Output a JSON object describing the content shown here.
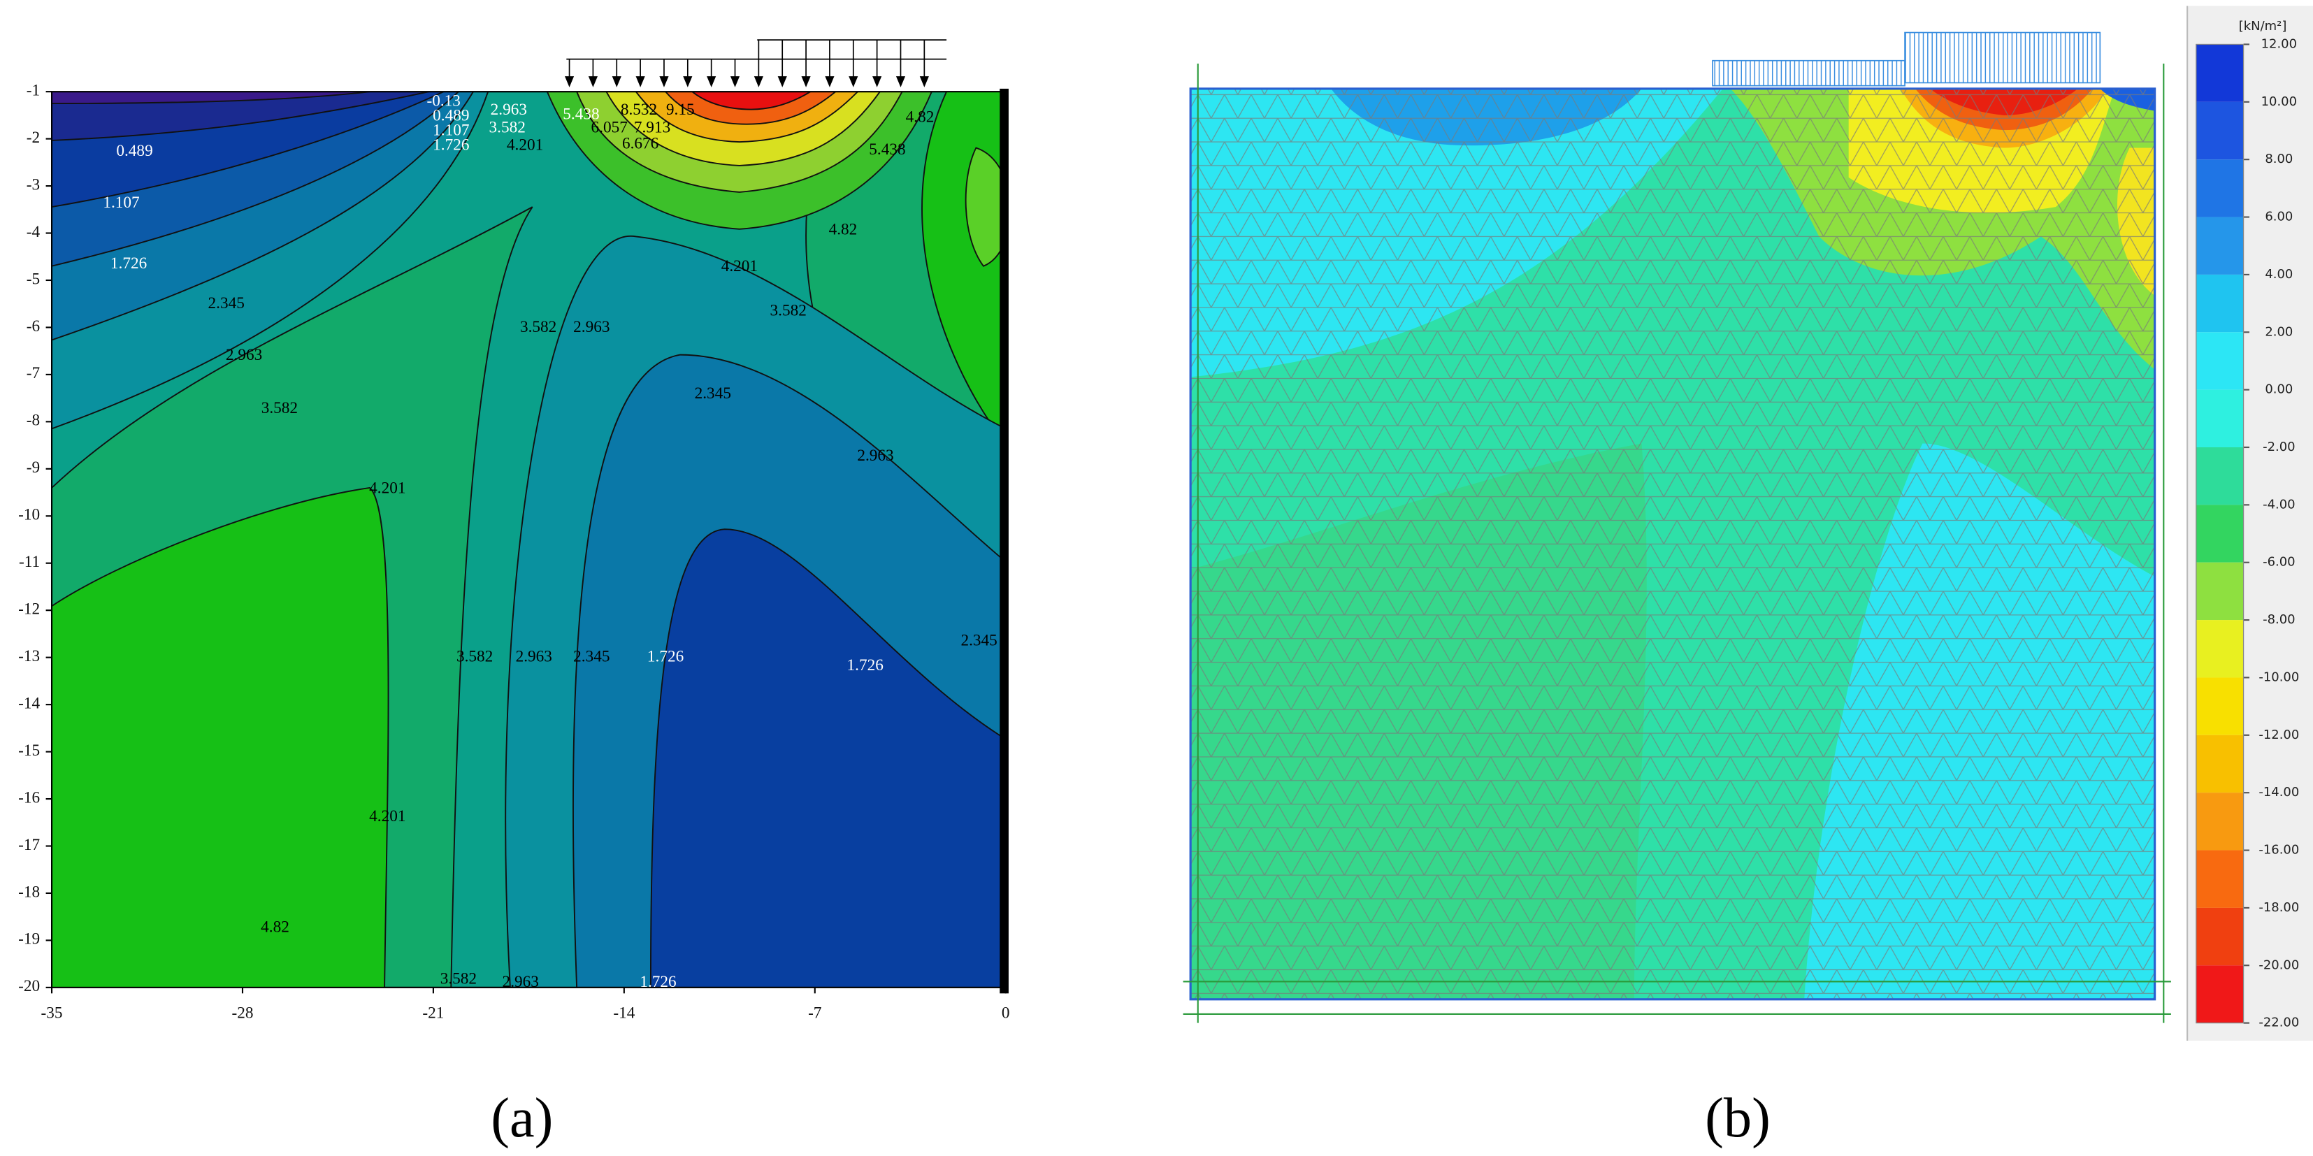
{
  "chart_data": [
    {
      "type": "contour",
      "panel_label": "(a)",
      "xlim": [
        -35,
        0
      ],
      "xticks": [
        -35,
        -28,
        -21,
        -14,
        -7,
        0
      ],
      "ylim": [
        -20,
        -1
      ],
      "yticks": [
        -1,
        -2,
        -3,
        -4,
        -5,
        -6,
        -7,
        -8,
        -9,
        -10,
        -11,
        -12,
        -13,
        -14,
        -15,
        -16,
        -17,
        -18,
        -19,
        -20
      ],
      "contour_labels": [
        "-0.13",
        "0.489",
        "1.107",
        "1.726",
        "2.963",
        "3.582",
        "4.201",
        "5.438",
        "6.057",
        "7.913",
        "8.532",
        "9.15",
        "6.676",
        "4.82",
        "5.438",
        "4.82",
        "4.201",
        "3.582",
        "0.489",
        "1.107",
        "1.726",
        "2.345",
        "2.963",
        "3.582",
        "4.201",
        "3.582",
        "2.963",
        "2.345",
        "2.963",
        "3.582",
        "2.963",
        "2.345",
        "1.726",
        "1.726",
        "2.345",
        "4.201",
        "4.82",
        "3.582",
        "2.963",
        "1.726"
      ]
    },
    {
      "type": "colormesh",
      "panel_label": "(b)",
      "colorbar_label": "[kN/m²]",
      "colorbar_lim": [
        -22,
        12
      ],
      "colorbar_ticks": [
        {
          "value": 12,
          "label": "12.00"
        },
        {
          "value": 10,
          "label": "10.00"
        },
        {
          "value": 8,
          "label": "8.00"
        },
        {
          "value": 6,
          "label": "6.00"
        },
        {
          "value": 4,
          "label": "4.00"
        },
        {
          "value": 2,
          "label": "2.00"
        },
        {
          "value": 0,
          "label": "0.00"
        },
        {
          "value": -2,
          "label": "-2.00"
        },
        {
          "value": -4,
          "label": "-4.00"
        },
        {
          "value": -6,
          "label": "-6.00"
        },
        {
          "value": -8,
          "label": "-8.00"
        },
        {
          "value": -10,
          "label": "-10.00"
        },
        {
          "value": -12,
          "label": "-12.00"
        },
        {
          "value": -14,
          "label": "-14.00"
        },
        {
          "value": -16,
          "label": "-16.00"
        },
        {
          "value": -18,
          "label": "-18.00"
        },
        {
          "value": -20,
          "label": "-20.00"
        },
        {
          "value": -22,
          "label": "-22.00"
        }
      ],
      "colorbar_colors": [
        "#1238d8",
        "#1d55e0",
        "#1f75e5",
        "#2596ea",
        "#1fc4f0",
        "#2ce6f5",
        "#2ef0e0",
        "#2edc9a",
        "#33d560",
        "#8ee040",
        "#e8f020",
        "#f8e000",
        "#f8c000",
        "#f89a10",
        "#f86a10",
        "#f04010",
        "#f01818"
      ]
    }
  ]
}
